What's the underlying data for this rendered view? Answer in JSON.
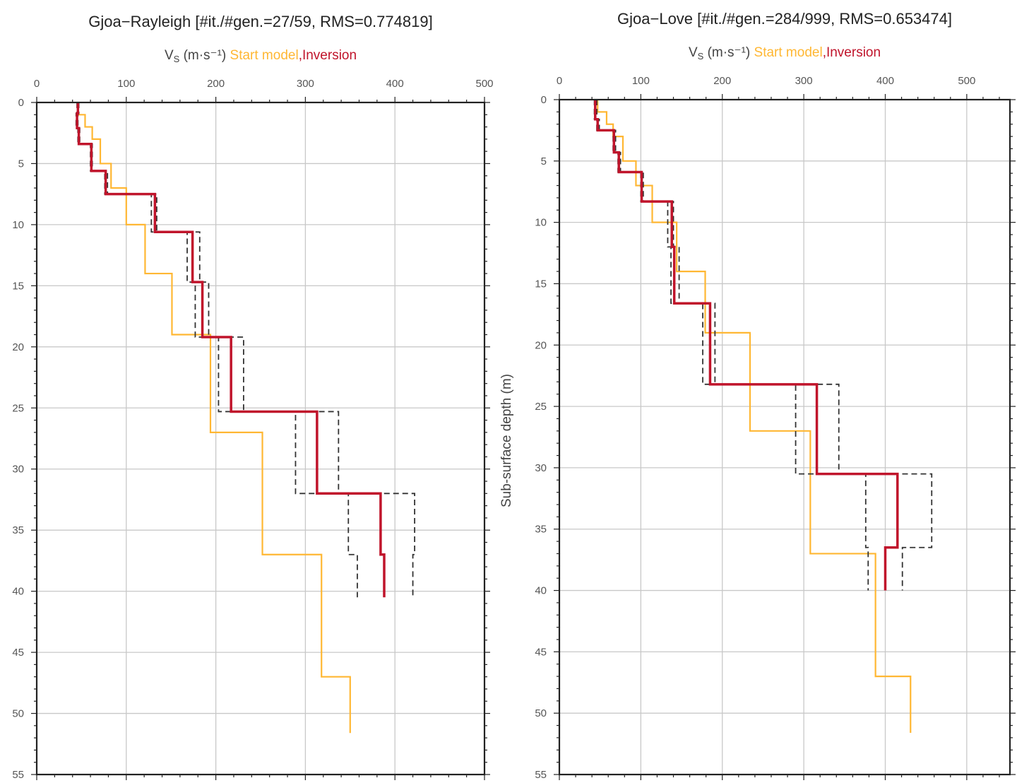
{
  "colors": {
    "start_model": "#ffb733",
    "inversion": "#c0142b",
    "bounds": "#333333",
    "grid": "#c8c8c8"
  },
  "chart_data": [
    {
      "type": "line",
      "title": "Gjoa−Rayleigh [#it./#gen.=27/59, RMS=0.774819]",
      "xlabel": {
        "prefix": "V",
        "sub": "S",
        "unit": " (m·s⁻¹) ",
        "start": "Start model",
        "inv": ",Inversion"
      },
      "ylabel": "",
      "xlim": [
        0,
        500
      ],
      "ylim": [
        0,
        55
      ],
      "xticks": [
        0,
        100,
        200,
        300,
        400,
        500
      ],
      "yticks": [
        0,
        5,
        10,
        15,
        20,
        25,
        30,
        35,
        40,
        45,
        50,
        55
      ],
      "grid": true,
      "start_model": [
        [
          0,
          1,
          46
        ],
        [
          1,
          2,
          54
        ],
        [
          2,
          3,
          62
        ],
        [
          3,
          5,
          71
        ],
        [
          5,
          7,
          83
        ],
        [
          7,
          10,
          100
        ],
        [
          10,
          14,
          121
        ],
        [
          14,
          19,
          151
        ],
        [
          19,
          27,
          194
        ],
        [
          27,
          37,
          252
        ],
        [
          37,
          47,
          318
        ],
        [
          47,
          51.6,
          350
        ]
      ],
      "inversion": [
        [
          0,
          0.9,
          46
        ],
        [
          0.9,
          2.1,
          45
        ],
        [
          2.1,
          3.4,
          47
        ],
        [
          3.4,
          5.6,
          61
        ],
        [
          5.6,
          7.5,
          77
        ],
        [
          7.5,
          10.6,
          132
        ],
        [
          10.6,
          14.7,
          174
        ],
        [
          14.7,
          19.2,
          185
        ],
        [
          19.2,
          25.3,
          217
        ],
        [
          25.3,
          32,
          313
        ],
        [
          32,
          37,
          384
        ],
        [
          37,
          40.5,
          388
        ]
      ],
      "bounds": [
        [
          0,
          0.9,
          45,
          47
        ],
        [
          0.9,
          2.1,
          44,
          46
        ],
        [
          2.1,
          3.4,
          46,
          48
        ],
        [
          3.4,
          5.6,
          60,
          62
        ],
        [
          5.6,
          7.5,
          76,
          79
        ],
        [
          7.5,
          10.6,
          128,
          134
        ],
        [
          10.6,
          14.7,
          168,
          182
        ],
        [
          14.7,
          19.2,
          177,
          192
        ],
        [
          19.2,
          25.3,
          203,
          231
        ],
        [
          25.3,
          32,
          289,
          337
        ],
        [
          32,
          37,
          348,
          422
        ],
        [
          37,
          40.5,
          358,
          420
        ]
      ]
    },
    {
      "type": "line",
      "title": "Gjoa−Love [#it./#gen.=284/999, RMS=0.653474]",
      "xlabel": {
        "prefix": "V",
        "sub": "S",
        "unit": " (m·s⁻¹) ",
        "start": "Start model",
        "inv": ",Inversion"
      },
      "ylabel": "Sub-surface depth (m)",
      "xlim": [
        0,
        553
      ],
      "ylim": [
        0,
        55
      ],
      "xticks": [
        0,
        100,
        200,
        300,
        400,
        500
      ],
      "yticks": [
        0,
        5,
        10,
        15,
        20,
        25,
        30,
        35,
        40,
        45,
        50,
        55
      ],
      "grid": true,
      "start_model": [
        [
          0,
          1,
          47
        ],
        [
          1,
          2,
          58
        ],
        [
          2,
          3,
          66
        ],
        [
          3,
          5,
          78
        ],
        [
          5,
          7,
          94
        ],
        [
          7,
          10,
          114
        ],
        [
          10,
          14,
          144
        ],
        [
          14,
          19,
          179
        ],
        [
          19,
          27,
          234
        ],
        [
          27,
          37,
          308
        ],
        [
          37,
          47,
          388
        ],
        [
          47,
          51.6,
          431
        ]
      ],
      "inversion": [
        [
          0,
          1.6,
          44
        ],
        [
          1.6,
          2.5,
          47
        ],
        [
          2.5,
          4.3,
          67
        ],
        [
          4.3,
          5.9,
          73
        ],
        [
          5.9,
          8.3,
          101
        ],
        [
          8.3,
          12,
          138
        ],
        [
          12,
          16.6,
          141
        ],
        [
          16.6,
          23.2,
          185
        ],
        [
          23.2,
          30.5,
          316
        ],
        [
          30.5,
          36.5,
          415
        ],
        [
          36.5,
          40,
          400
        ]
      ],
      "bounds": [
        [
          0,
          1.6,
          43,
          46
        ],
        [
          1.6,
          2.5,
          46,
          49
        ],
        [
          2.5,
          4.3,
          66,
          69
        ],
        [
          4.3,
          5.9,
          72,
          75
        ],
        [
          5.9,
          8.3,
          100,
          103
        ],
        [
          8.3,
          12,
          133,
          140
        ],
        [
          12,
          16.6,
          137,
          147
        ],
        [
          16.6,
          23.2,
          176,
          191
        ],
        [
          23.2,
          30.5,
          290,
          343
        ],
        [
          30.5,
          36.5,
          376,
          457
        ],
        [
          36.5,
          40,
          379,
          421
        ]
      ]
    }
  ]
}
